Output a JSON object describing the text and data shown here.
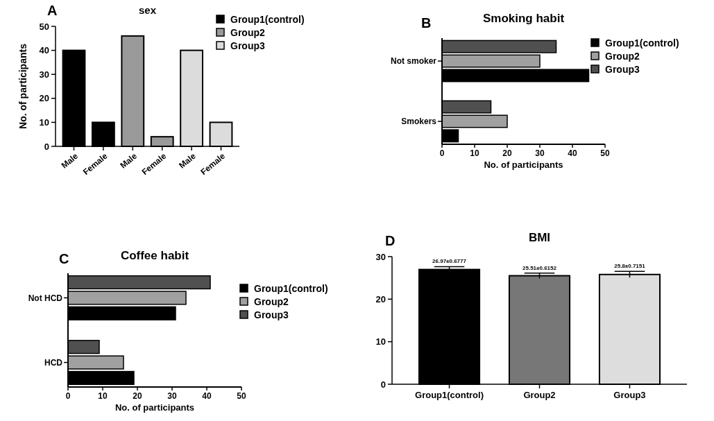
{
  "chart_data": [
    {
      "type": "bar",
      "title": "sex",
      "annotations": [
        "A"
      ],
      "ylabel": "No. of participants",
      "categories": [
        "Male",
        "Female",
        "Male",
        "Female",
        "Male",
        "Female"
      ],
      "series": [
        {
          "name": "Group1(control)",
          "color": "#000000",
          "values": [
            40,
            10,
            null,
            null,
            null,
            null
          ]
        },
        {
          "name": "Group2",
          "color": "#9a9a9a",
          "values": [
            null,
            null,
            46,
            4,
            null,
            null
          ]
        },
        {
          "name": "Group3",
          "color": "#dcdcdc",
          "values": [
            null,
            null,
            null,
            null,
            40,
            10
          ]
        }
      ],
      "ylim": [
        0,
        50
      ],
      "yticks": [
        0,
        10,
        20,
        30,
        40,
        50
      ],
      "legend": "top right",
      "grid": false
    },
    {
      "type": "bar",
      "orientation": "horizontal",
      "title": "Smoking habit",
      "annotations": [
        "B"
      ],
      "xlabel": "No. of participants",
      "categories": [
        "Not smoker",
        "Smokers"
      ],
      "series": [
        {
          "name": "Group1(control)",
          "color": "#000000",
          "values": [
            45,
            5
          ]
        },
        {
          "name": "Group2",
          "color": "#a0a0a0",
          "values": [
            30,
            20
          ]
        },
        {
          "name": "Group3",
          "color": "#505050",
          "values": [
            35,
            15
          ]
        }
      ],
      "xlim": [
        0,
        50
      ],
      "xticks": [
        0,
        10,
        20,
        30,
        40,
        50
      ],
      "legend": "right",
      "grid": false
    },
    {
      "type": "bar",
      "orientation": "horizontal",
      "title": "Coffee habit",
      "annotations": [
        "C"
      ],
      "xlabel": "No. of participants",
      "categories": [
        "Not HCD",
        "HCD"
      ],
      "series": [
        {
          "name": "Group1(control)",
          "color": "#000000",
          "values": [
            31,
            19
          ]
        },
        {
          "name": "Group2",
          "color": "#a0a0a0",
          "values": [
            34,
            16
          ]
        },
        {
          "name": "Group3",
          "color": "#505050",
          "values": [
            41,
            9
          ]
        }
      ],
      "xlim": [
        0,
        50
      ],
      "xticks": [
        0,
        10,
        20,
        30,
        40,
        50
      ],
      "legend": "right",
      "grid": false
    },
    {
      "type": "bar",
      "title": "BMI",
      "annotations": [
        "D"
      ],
      "categories": [
        "Group1(control)",
        "Group2",
        "Group3"
      ],
      "values": [
        26.97,
        25.51,
        25.8
      ],
      "colors": [
        "#000000",
        "#777777",
        "#dddddd"
      ],
      "errors": [
        0.6777,
        0.6152,
        0.7151
      ],
      "value_labels": [
        "26.97±0.6777",
        "25.51±0.6152",
        "25.8±0.7151"
      ],
      "ylim": [
        0,
        30
      ],
      "yticks": [
        0,
        10,
        20,
        30
      ],
      "grid": false
    }
  ]
}
